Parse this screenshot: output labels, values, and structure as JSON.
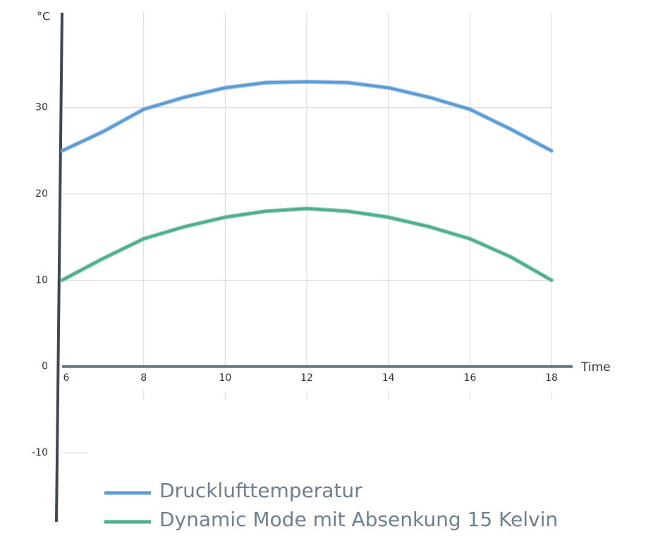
{
  "chart_data": {
    "type": "line",
    "y_label": "°C",
    "x_label": "Time",
    "x": [
      6,
      7,
      8,
      9,
      10,
      11,
      12,
      13,
      14,
      15,
      16,
      17,
      18
    ],
    "series": [
      {
        "name": "Drucklufttemperatur",
        "color": "#5b9bd5",
        "values": [
          25,
          27.2,
          29.8,
          31.2,
          32.3,
          32.9,
          33,
          32.9,
          32.3,
          31.2,
          29.8,
          27.5,
          25
        ]
      },
      {
        "name": "Dynamic Mode mit Absenkung 15 Kelvin",
        "color": "#4caf8a",
        "values": [
          10,
          12.5,
          14.8,
          16.2,
          17.3,
          18,
          18.3,
          18,
          17.3,
          16.2,
          14.8,
          12.7,
          10
        ]
      }
    ],
    "xlim": [
      6,
      18
    ],
    "xticks": [
      6,
      8,
      10,
      12,
      14,
      16,
      18
    ],
    "ylim": [
      -18,
      41
    ],
    "yticks": [
      -10,
      0,
      10,
      20,
      30
    ],
    "grid": true
  }
}
